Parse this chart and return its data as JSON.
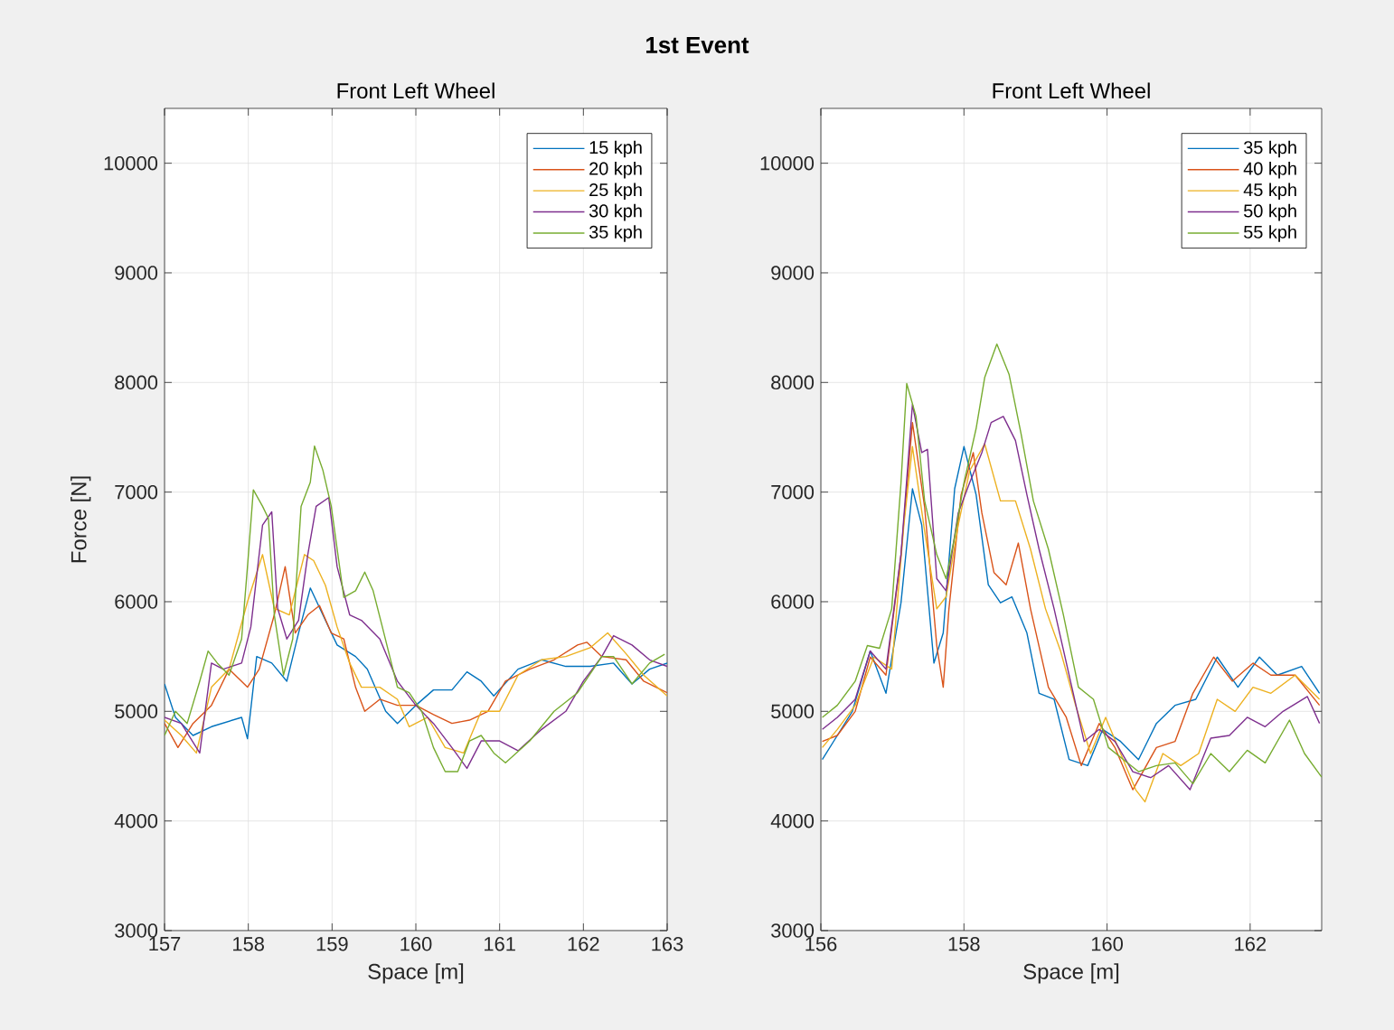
{
  "chart_data": [
    {
      "type": "line",
      "title": "Front Left Wheel",
      "xlabel": "Space [m]",
      "ylabel": "Force [N]",
      "annotations": [
        "1st Event"
      ],
      "xlim": [
        157,
        163
      ],
      "ylim": [
        3000,
        10500
      ],
      "xticks": [
        157,
        158,
        159,
        160,
        161,
        162,
        163
      ],
      "yticks": [
        3000,
        4000,
        5000,
        6000,
        7000,
        8000,
        9000,
        10000
      ],
      "grid": true,
      "legend": "top right",
      "series": [
        {
          "name": "15 kph",
          "color": "#0072bd",
          "x": [
            157.0,
            157.13,
            157.34,
            157.56,
            157.92,
            157.99,
            158.1,
            158.28,
            158.46,
            158.6,
            158.74,
            158.89,
            159.06,
            159.28,
            159.42,
            159.64,
            159.78,
            160.0,
            160.21,
            160.43,
            160.61,
            160.78,
            160.93,
            161.22,
            161.5,
            161.79,
            162.08,
            162.36,
            162.58,
            162.79,
            163.0
          ],
          "values": [
            5250,
            4945,
            4780,
            4860,
            4945,
            4750,
            5500,
            5440,
            5275,
            5715,
            6125,
            5880,
            5605,
            5500,
            5385,
            5000,
            4890,
            5055,
            5195,
            5195,
            5360,
            5275,
            5140,
            5385,
            5470,
            5410,
            5410,
            5440,
            5250,
            5385,
            5440
          ]
        },
        {
          "name": "20 kph",
          "color": "#d95319",
          "x": [
            157.0,
            157.16,
            157.34,
            157.56,
            157.77,
            157.99,
            158.13,
            158.31,
            158.44,
            158.56,
            158.71,
            158.85,
            158.99,
            159.14,
            159.28,
            159.39,
            159.57,
            159.78,
            160.0,
            160.21,
            160.43,
            160.64,
            160.86,
            161.07,
            161.36,
            161.65,
            161.93,
            162.04,
            162.22,
            162.51,
            162.72,
            163.0
          ],
          "values": [
            4890,
            4670,
            4890,
            5055,
            5385,
            5220,
            5385,
            5880,
            6320,
            5715,
            5880,
            5965,
            5715,
            5660,
            5220,
            5000,
            5110,
            5055,
            5055,
            4970,
            4890,
            4920,
            5000,
            5275,
            5385,
            5470,
            5605,
            5630,
            5500,
            5470,
            5275,
            5170
          ]
        },
        {
          "name": "25 kph",
          "color": "#edb120",
          "x": [
            157.0,
            157.2,
            157.38,
            157.56,
            157.77,
            157.99,
            158.17,
            158.31,
            158.49,
            158.67,
            158.78,
            158.92,
            159.06,
            159.21,
            159.35,
            159.57,
            159.78,
            159.92,
            160.14,
            160.35,
            160.57,
            160.78,
            161.0,
            161.22,
            161.5,
            161.79,
            162.08,
            162.29,
            162.51,
            162.72,
            163.0
          ],
          "values": [
            4920,
            4780,
            4620,
            5220,
            5385,
            6000,
            6430,
            5940,
            5880,
            6430,
            6375,
            6150,
            5770,
            5440,
            5220,
            5220,
            5110,
            4860,
            4945,
            4670,
            4620,
            5000,
            5000,
            5330,
            5470,
            5500,
            5580,
            5715,
            5525,
            5330,
            5140
          ]
        },
        {
          "name": "30 kph",
          "color": "#7e2f8e",
          "x": [
            157.0,
            157.2,
            157.42,
            157.56,
            157.7,
            157.92,
            158.03,
            158.17,
            158.28,
            158.35,
            158.46,
            158.6,
            158.71,
            158.81,
            158.96,
            159.06,
            159.21,
            159.35,
            159.57,
            159.78,
            160.0,
            160.21,
            160.43,
            160.61,
            160.78,
            161.0,
            161.22,
            161.5,
            161.79,
            162.0,
            162.22,
            162.36,
            162.58,
            162.79,
            163.0
          ],
          "values": [
            4945,
            4890,
            4620,
            5440,
            5385,
            5440,
            5770,
            6700,
            6820,
            5940,
            5660,
            5830,
            6430,
            6870,
            6950,
            6320,
            5880,
            5830,
            5660,
            5275,
            5055,
            4890,
            4670,
            4480,
            4730,
            4730,
            4640,
            4835,
            5000,
            5275,
            5500,
            5690,
            5605,
            5470,
            5410
          ]
        },
        {
          "name": "35 kph",
          "color": "#77ac30",
          "x": [
            157.0,
            157.13,
            157.27,
            157.42,
            157.52,
            157.63,
            157.77,
            157.92,
            157.99,
            158.06,
            158.17,
            158.24,
            158.31,
            158.42,
            158.53,
            158.63,
            158.74,
            158.79,
            158.89,
            158.99,
            159.14,
            159.28,
            159.39,
            159.49,
            159.6,
            159.78,
            159.92,
            160.07,
            160.21,
            160.35,
            160.5,
            160.64,
            160.78,
            160.93,
            161.07,
            161.36,
            161.65,
            161.93,
            162.22,
            162.36,
            162.58,
            162.79,
            162.97
          ],
          "values": [
            4780,
            5000,
            4890,
            5275,
            5550,
            5440,
            5330,
            5660,
            6320,
            7020,
            6870,
            6760,
            5880,
            5330,
            5660,
            6870,
            7090,
            7420,
            7200,
            6870,
            6040,
            6100,
            6270,
            6100,
            5770,
            5220,
            5170,
            5000,
            4670,
            4450,
            4450,
            4730,
            4780,
            4620,
            4530,
            4730,
            5000,
            5170,
            5500,
            5500,
            5250,
            5440,
            5520
          ]
        }
      ]
    },
    {
      "type": "line",
      "title": "Front Left Wheel",
      "xlabel": "Space [m]",
      "xlim": [
        156,
        163
      ],
      "ylim": [
        3000,
        10500
      ],
      "xticks": [
        156,
        158,
        160,
        162
      ],
      "yticks": [
        3000,
        4000,
        5000,
        6000,
        7000,
        8000,
        9000,
        10000
      ],
      "grid": true,
      "legend": "top right",
      "series": [
        {
          "name": "35 kph",
          "color": "#0072bd",
          "x": [
            156.02,
            156.23,
            156.44,
            156.69,
            156.91,
            157.12,
            157.28,
            157.41,
            157.58,
            157.71,
            157.87,
            158.0,
            158.17,
            158.34,
            158.51,
            158.67,
            158.88,
            159.05,
            159.26,
            159.47,
            159.73,
            159.94,
            160.19,
            160.44,
            160.69,
            160.95,
            161.24,
            161.54,
            161.83,
            162.13,
            162.38,
            162.72,
            162.97
          ],
          "values": [
            4560,
            4780,
            5000,
            5550,
            5165,
            5990,
            7030,
            6700,
            5440,
            5715,
            7030,
            7415,
            6975,
            6155,
            5990,
            6045,
            5715,
            5165,
            5110,
            4560,
            4505,
            4835,
            4725,
            4560,
            4890,
            5055,
            5110,
            5495,
            5220,
            5495,
            5330,
            5410,
            5165
          ]
        },
        {
          "name": "40 kph",
          "color": "#d95319",
          "x": [
            156.02,
            156.23,
            156.48,
            156.69,
            156.91,
            157.12,
            157.28,
            157.45,
            157.62,
            157.71,
            157.79,
            157.96,
            158.13,
            158.25,
            158.42,
            158.59,
            158.76,
            158.93,
            159.18,
            159.43,
            159.64,
            159.89,
            160.11,
            160.36,
            160.69,
            160.95,
            161.2,
            161.49,
            161.75,
            162.04,
            162.29,
            162.63,
            162.97
          ],
          "values": [
            4725,
            4780,
            5000,
            5495,
            5330,
            6430,
            7635,
            6865,
            5600,
            5220,
            5935,
            6975,
            7360,
            6810,
            6265,
            6155,
            6535,
            5935,
            5220,
            4945,
            4505,
            4890,
            4670,
            4285,
            4670,
            4725,
            5165,
            5495,
            5275,
            5440,
            5330,
            5330,
            5055
          ]
        },
        {
          "name": "45 kph",
          "color": "#edb120",
          "x": [
            156.02,
            156.23,
            156.48,
            156.74,
            156.99,
            157.16,
            157.28,
            157.45,
            157.62,
            157.75,
            157.92,
            158.08,
            158.29,
            158.51,
            158.72,
            158.93,
            159.14,
            159.35,
            159.56,
            159.77,
            159.98,
            160.19,
            160.4,
            160.53,
            160.78,
            161.03,
            161.28,
            161.54,
            161.79,
            162.04,
            162.29,
            162.63,
            162.97
          ],
          "values": [
            4670,
            4835,
            5055,
            5495,
            5385,
            6700,
            7415,
            6645,
            5935,
            6045,
            6700,
            7195,
            7440,
            6920,
            6920,
            6480,
            5935,
            5550,
            5055,
            4615,
            4945,
            4615,
            4285,
            4175,
            4615,
            4505,
            4615,
            5110,
            5000,
            5220,
            5165,
            5330,
            5110
          ]
        },
        {
          "name": "50 kph",
          "color": "#7e2f8e",
          "x": [
            156.02,
            156.23,
            156.48,
            156.69,
            156.91,
            157.12,
            157.28,
            157.41,
            157.49,
            157.62,
            157.75,
            157.92,
            158.08,
            158.25,
            158.38,
            158.55,
            158.72,
            158.88,
            159.05,
            159.26,
            159.47,
            159.68,
            159.89,
            160.11,
            160.36,
            160.61,
            160.86,
            161.16,
            161.45,
            161.71,
            161.96,
            162.21,
            162.46,
            162.8,
            162.97
          ],
          "values": [
            4835,
            4945,
            5110,
            5550,
            5385,
            6430,
            7800,
            7360,
            7390,
            6210,
            6100,
            6810,
            7085,
            7360,
            7635,
            7690,
            7470,
            6975,
            6480,
            5935,
            5330,
            4725,
            4835,
            4725,
            4450,
            4395,
            4505,
            4285,
            4755,
            4780,
            4945,
            4860,
            5000,
            5135,
            4890
          ]
        },
        {
          "name": "55 kph",
          "color": "#77ac30",
          "x": [
            156.02,
            156.23,
            156.48,
            156.65,
            156.82,
            156.99,
            157.12,
            157.2,
            157.33,
            157.45,
            157.62,
            157.75,
            157.87,
            158.0,
            158.17,
            158.29,
            158.46,
            158.63,
            158.8,
            158.97,
            159.18,
            159.39,
            159.6,
            159.81,
            160.02,
            160.23,
            160.44,
            160.69,
            160.95,
            161.2,
            161.45,
            161.71,
            161.96,
            162.21,
            162.55,
            162.76,
            163.0
          ],
          "values": [
            4945,
            5055,
            5275,
            5600,
            5575,
            5935,
            7085,
            7990,
            7690,
            6920,
            6430,
            6210,
            6590,
            7085,
            7580,
            8045,
            8350,
            8075,
            7525,
            6920,
            6480,
            5880,
            5220,
            5110,
            4670,
            4560,
            4450,
            4505,
            4530,
            4340,
            4615,
            4450,
            4645,
            4530,
            4920,
            4615,
            4400
          ]
        }
      ]
    }
  ]
}
